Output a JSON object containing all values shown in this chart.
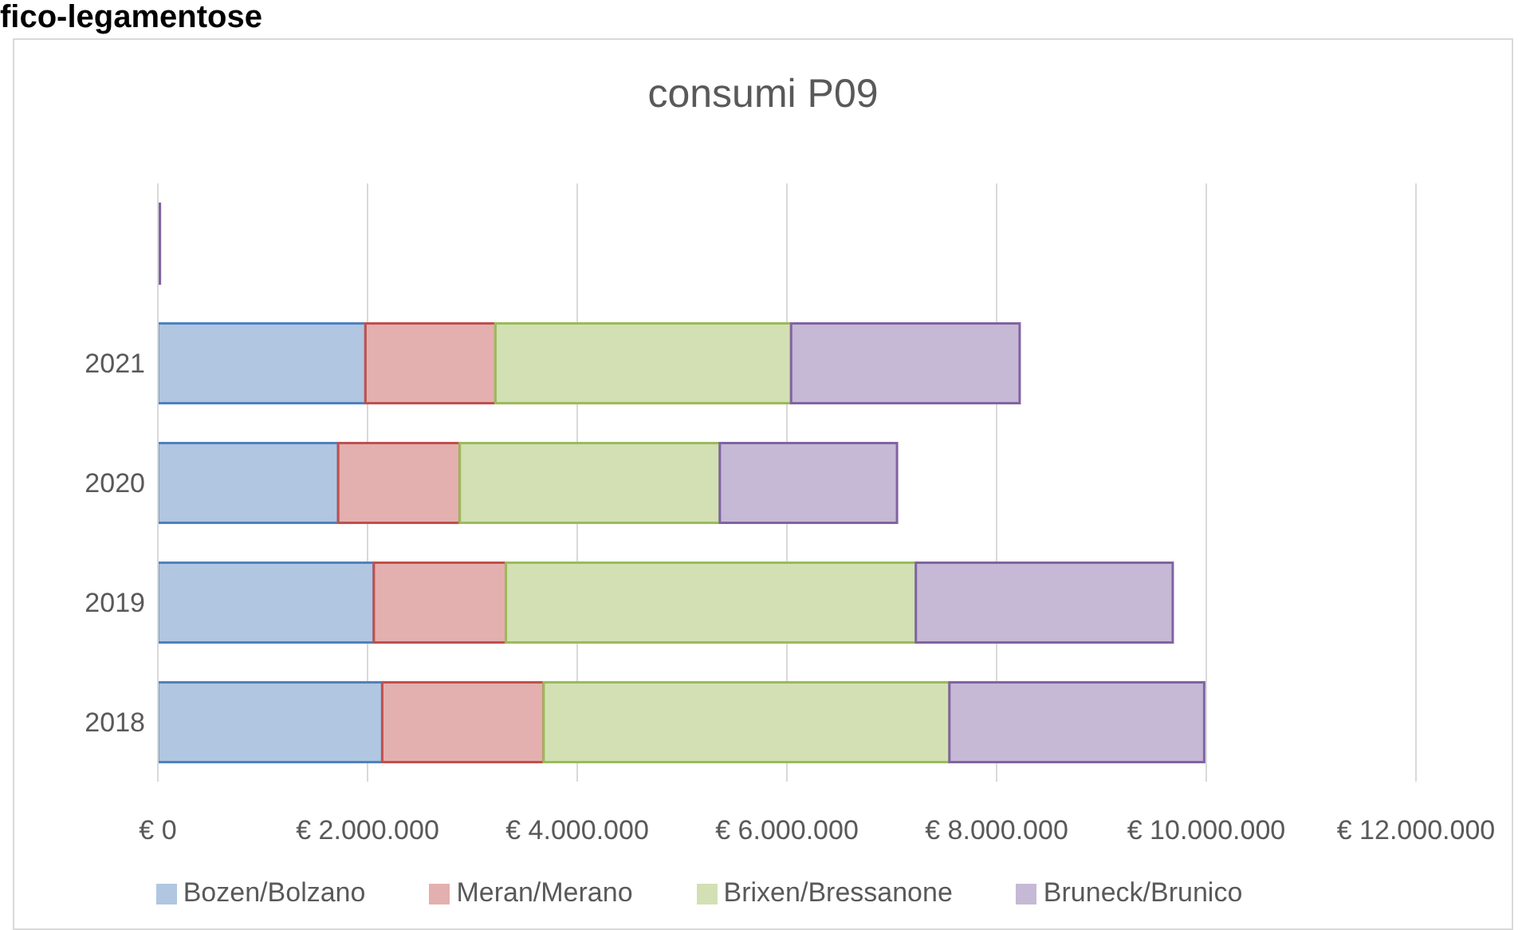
{
  "chart_data": {
    "type": "bar",
    "orientation": "horizontal",
    "stacked": true,
    "title": "consumi P09",
    "annotations": [
      "fico-legamentose"
    ],
    "categories": [
      null,
      "2021",
      "2020",
      "2019",
      "2018"
    ],
    "series": [
      {
        "name": "Bozen/Bolzano",
        "color": "#4f81bd",
        "values": [
          0,
          1980000,
          1720000,
          2060000,
          2140000
        ]
      },
      {
        "name": "Meran/Merano",
        "color": "#c0504d",
        "values": [
          0,
          1240000,
          1160000,
          1260000,
          1540000
        ]
      },
      {
        "name": "Brixen/Bressanone",
        "color": "#9bbb59",
        "values": [
          0,
          2820000,
          2480000,
          3910000,
          3870000
        ]
      },
      {
        "name": "Bruneck/Brunico",
        "color": "#8064a2",
        "values": [
          20000,
          2180000,
          1690000,
          2450000,
          2430000
        ]
      }
    ],
    "xlim": [
      0,
      12000000
    ],
    "xticks": [
      {
        "value": 0,
        "label": "€ 0"
      },
      {
        "value": 2000000,
        "label": "€ 2.000.000"
      },
      {
        "value": 4000000,
        "label": "€ 4.000.000"
      },
      {
        "value": 6000000,
        "label": "€ 6.000.000"
      },
      {
        "value": 8000000,
        "label": "€ 8.000.000"
      },
      {
        "value": 10000000,
        "label": "€ 10.000.000"
      },
      {
        "value": 12000000,
        "label": "€ 12.000.000"
      }
    ],
    "grid": "x",
    "legend": "bottom"
  }
}
